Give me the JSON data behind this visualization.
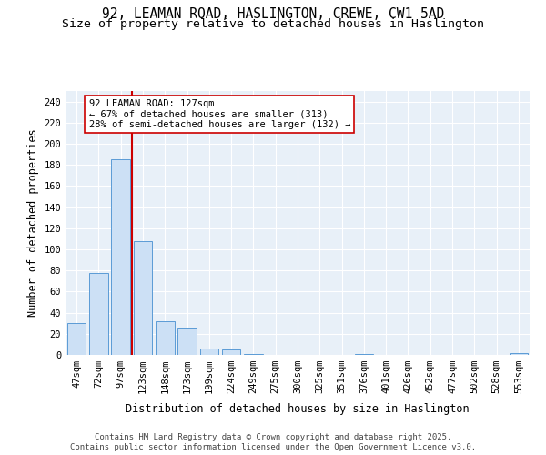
{
  "title_line1": "92, LEAMAN ROAD, HASLINGTON, CREWE, CW1 5AD",
  "title_line2": "Size of property relative to detached houses in Haslington",
  "xlabel": "Distribution of detached houses by size in Haslington",
  "ylabel": "Number of detached properties",
  "categories": [
    "47sqm",
    "72sqm",
    "97sqm",
    "123sqm",
    "148sqm",
    "173sqm",
    "199sqm",
    "224sqm",
    "249sqm",
    "275sqm",
    "300sqm",
    "325sqm",
    "351sqm",
    "376sqm",
    "401sqm",
    "426sqm",
    "452sqm",
    "477sqm",
    "502sqm",
    "528sqm",
    "553sqm"
  ],
  "values": [
    30,
    78,
    185,
    108,
    32,
    26,
    6,
    5,
    1,
    0,
    0,
    0,
    0,
    1,
    0,
    0,
    0,
    0,
    0,
    0,
    2
  ],
  "bar_color": "#cce0f5",
  "bar_edge_color": "#5b9bd5",
  "vline_x_index": 3,
  "vline_color": "#cc0000",
  "annotation_text": "92 LEAMAN ROAD: 127sqm\n← 67% of detached houses are smaller (313)\n28% of semi-detached houses are larger (132) →",
  "annotation_box_color": "#ffffff",
  "annotation_box_edge": "#cc0000",
  "annotation_fontsize": 7.5,
  "ylim": [
    0,
    250
  ],
  "yticks": [
    0,
    20,
    40,
    60,
    80,
    100,
    120,
    140,
    160,
    180,
    200,
    220,
    240
  ],
  "background_color": "#e8f0f8",
  "footer_line1": "Contains HM Land Registry data © Crown copyright and database right 2025.",
  "footer_line2": "Contains public sector information licensed under the Open Government Licence v3.0.",
  "title_fontsize": 10.5,
  "subtitle_fontsize": 9.5,
  "axis_label_fontsize": 8.5,
  "tick_fontsize": 7.5,
  "footer_fontsize": 6.5
}
